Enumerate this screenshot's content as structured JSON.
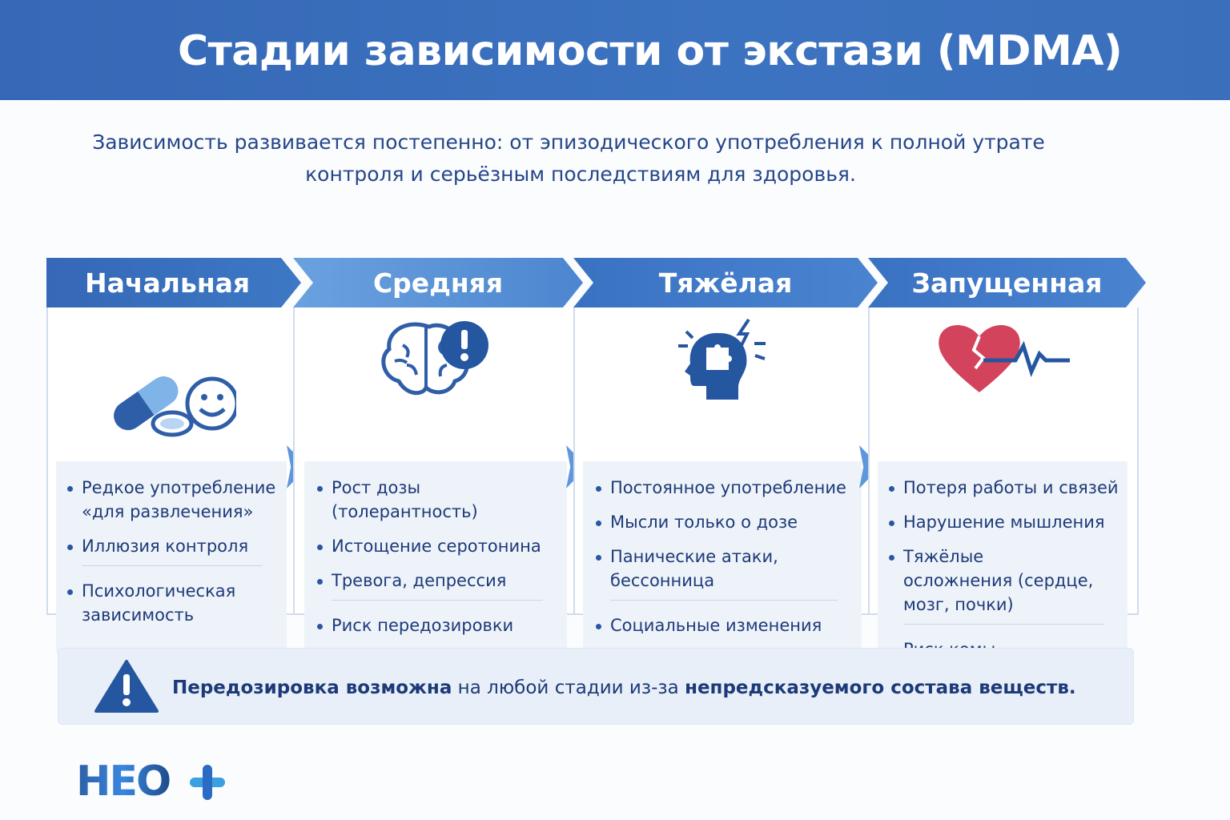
{
  "title": "Стадии зависимости от экстази (MDMA)",
  "subtitle": [
    "Зависимость развивается постепенно: от эпизодического употребления к полной утрате",
    "контроля и серьёзным последствиям для здоровья."
  ],
  "stages": [
    {
      "name": "Начальная",
      "icon": "pills-smiley-icon",
      "items": [
        "Редкое употребление «для развлечения»",
        "Иллюзия контроля",
        "Психологическая зависимость"
      ]
    },
    {
      "name": "Средняя",
      "icon": "brain-warning-icon",
      "items": [
        "Рост дозы (толерантность)",
        "Истощение серотонина",
        "Тревога, депрессия",
        "Риск передозировки"
      ]
    },
    {
      "name": "Тяжёлая",
      "icon": "head-puzzle-icon",
      "items": [
        "Постоянное употребление",
        "Мысли только о дозе",
        "Панические атаки, бессонница",
        "Социальные изменения"
      ]
    },
    {
      "name": "Запущенная",
      "icon": "broken-heart-pulse-icon",
      "items": [
        "Потеря работы и связей",
        "Нарушение мышления",
        "Тяжёлые осложнения (сердце, мозг, почки)",
        "Риск комы"
      ]
    }
  ],
  "alert": {
    "bold1": "Передозировка возможна",
    "text": " на любой стадии из-за ",
    "bold2": "непредсказуемого состава веществ."
  },
  "logo": "НЕО+",
  "colors": {
    "header": "#3a6fbb",
    "text": "#1d3a78",
    "accent": "#5f97dc"
  }
}
